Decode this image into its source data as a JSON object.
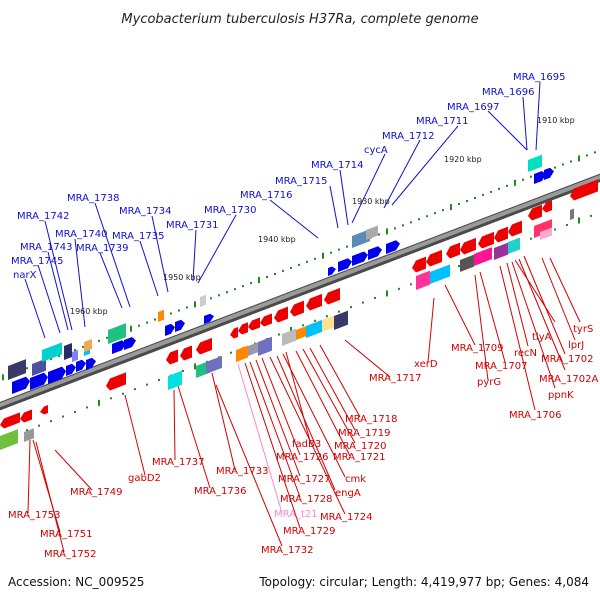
{
  "title": "Mycobacterium tuberculosis H37Ra, complete genome",
  "footer": {
    "accession": "Accession: NC_009525",
    "topology": "Topology: circular; Length: 4,419,977 bp; Genes: 4,084"
  },
  "colors": {
    "upper_label": "#1010d0",
    "lower_label": "#d40000",
    "pink_label": "#ff88cc",
    "backbone": "#777777",
    "tick": "#228822"
  },
  "ticks": [
    "1910 kbp",
    "1920 kbp",
    "1930 kbp",
    "1940 kbp",
    "1950 kbp",
    "1960 kbp"
  ],
  "upper_genes": [
    "MRA_1695",
    "MRA_1696",
    "MRA_1697",
    "MRA_1711",
    "MRA_1712",
    "cycA",
    "MRA_1714",
    "MRA_1715",
    "MRA_1716",
    "MRA_1730",
    "MRA_1731",
    "MRA_1734",
    "MRA_1735",
    "MRA_1738",
    "MRA_1739",
    "MRA_1740",
    "MRA_1742",
    "MRA_1743",
    "MRA_1745",
    "narX"
  ],
  "lower_genes": [
    "tyrS",
    "lprJ",
    "MRA_1702",
    "MRA_1702A",
    "tlyA",
    "recN",
    "ppnK",
    "MRA_1706",
    "MRA_1707",
    "pyrG",
    "MRA_1709",
    "xerD",
    "MRA_1717",
    "MRA_1718",
    "MRA_1719",
    "MRA_1720",
    "MRA_1721",
    "fadB3",
    "cmk",
    "engA",
    "MRA_1724",
    "MRA_1726",
    "MRA_1727",
    "MRA_1728",
    "MRA_1729",
    "MRA_t21",
    "MRA_1732",
    "MRA_1733",
    "MRA_1736",
    "MRA_1737",
    "gabD2",
    "MRA_1749",
    "MRA_1751",
    "MRA_1752",
    "MRA_1753"
  ]
}
